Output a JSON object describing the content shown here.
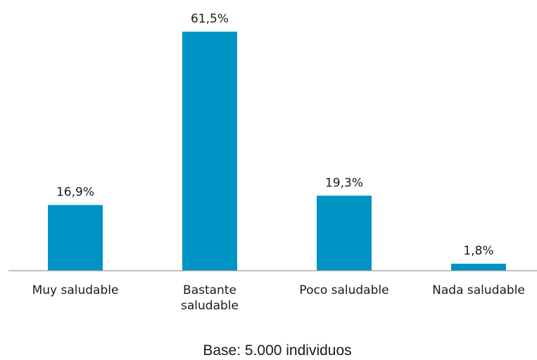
{
  "chart_data": {
    "type": "bar",
    "categories": [
      [
        "Muy saludable"
      ],
      [
        "Bastante",
        "saludable"
      ],
      [
        "Poco saludable"
      ],
      [
        "Nada saludable"
      ]
    ],
    "values": [
      16.9,
      61.5,
      19.3,
      1.8
    ],
    "data_labels": [
      "16,9%",
      "61,5%",
      "19,3%",
      "1,8%"
    ],
    "bar_color": "#0094c5",
    "ylim": [
      0,
      61.5
    ],
    "grid": false,
    "legend": "none"
  },
  "footnote": "Base: 5.000 individuos"
}
